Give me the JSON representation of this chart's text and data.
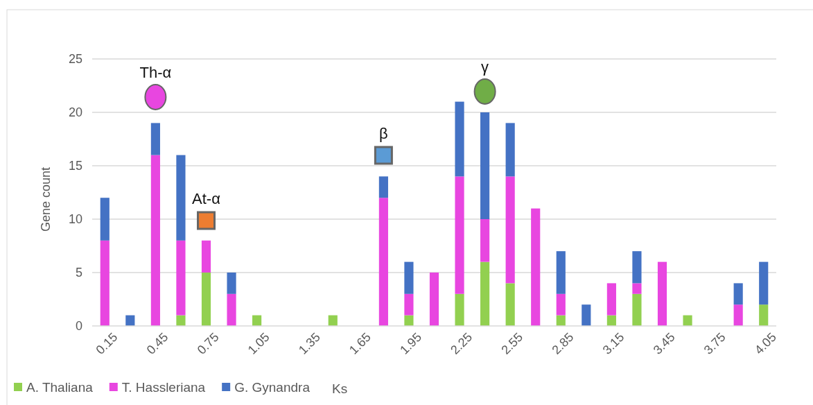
{
  "chart_data": {
    "type": "bar",
    "stacked": true,
    "ylabel": "Gene count",
    "xlabel": "Ks",
    "categories": [
      "0.15",
      null,
      "0.45",
      null,
      "0.75",
      null,
      "1.05",
      null,
      "1.35",
      null,
      "1.65",
      null,
      "1.95",
      null,
      "2.25",
      null,
      "2.55",
      null,
      "2.85",
      null,
      "3.15",
      null,
      "3.45",
      null,
      "3.75",
      null,
      "4.05"
    ],
    "series": [
      {
        "name": "A. Thaliana",
        "color": "#92d050",
        "values": [
          0,
          0,
          0,
          1,
          5,
          0,
          1,
          0,
          0,
          1,
          0,
          0,
          1,
          0,
          3,
          6,
          4,
          0,
          1,
          0,
          1,
          3,
          0,
          1,
          0,
          0,
          2
        ]
      },
      {
        "name": "T. Hassleriana",
        "color": "#e846e0",
        "values": [
          8,
          0,
          16,
          7,
          3,
          3,
          0,
          0,
          0,
          0,
          0,
          12,
          2,
          5,
          11,
          4,
          10,
          11,
          2,
          0,
          3,
          1,
          6,
          0,
          0,
          2,
          0
        ]
      },
      {
        "name": "G. Gynandra",
        "color": "#4472c4",
        "values": [
          4,
          1,
          3,
          8,
          0,
          2,
          0,
          0,
          0,
          0,
          0,
          2,
          3,
          0,
          7,
          10,
          5,
          0,
          4,
          2,
          0,
          3,
          0,
          0,
          0,
          2,
          4
        ]
      }
    ],
    "ylim": [
      0,
      25
    ],
    "yticks": [
      0,
      5,
      10,
      15,
      20,
      25
    ],
    "grid": "y",
    "legend": "bottom left",
    "annotations": [
      "Th-α",
      "At-α",
      "β",
      "γ"
    ]
  }
}
